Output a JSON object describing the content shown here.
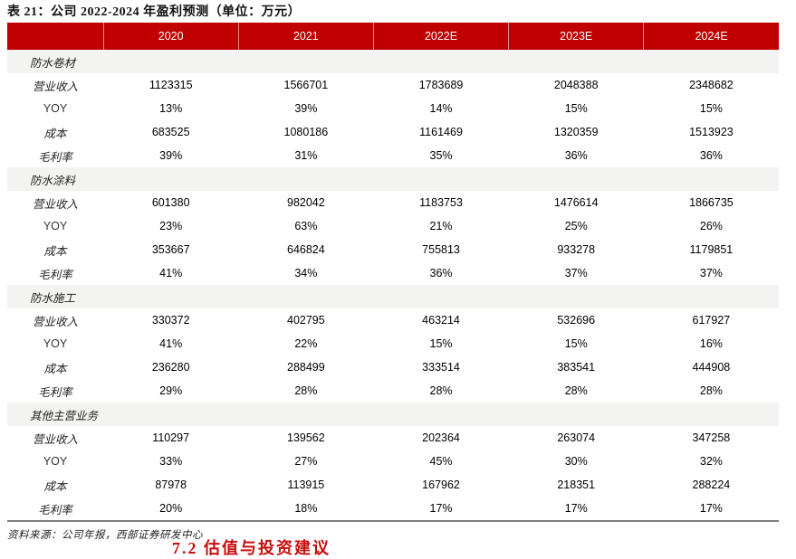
{
  "title": "表 21：公司 2022-2024 年盈利预测（单位：万元）",
  "footer": {
    "source": "资料来源：公司年报，西部证券研发中心"
  },
  "clipped_heading": "7.2 估值与投资建议",
  "colors": {
    "header_red": "#c00000",
    "section_row_bg": "#f3f3f2",
    "bottom_rule_gray": "#7f7f7f",
    "heading_red": "#c80d0d"
  },
  "chart_data": {
    "type": "table",
    "title": "表 21：公司 2022-2024 年盈利预测（单位：万元）",
    "columns": [
      "2020",
      "2021",
      "2022E",
      "2023E",
      "2024E"
    ],
    "sections": [
      {
        "name": "防水卷材",
        "rows": [
          {
            "label": "营业收入",
            "values": [
              "1123315",
              "1566701",
              "1783689",
              "2048388",
              "2348682"
            ]
          },
          {
            "label": "YOY",
            "values": [
              "13%",
              "39%",
              "14%",
              "15%",
              "15%"
            ]
          },
          {
            "label": "成本",
            "values": [
              "683525",
              "1080186",
              "1161469",
              "1320359",
              "1513923"
            ]
          },
          {
            "label": "毛利率",
            "values": [
              "39%",
              "31%",
              "35%",
              "36%",
              "36%"
            ]
          }
        ]
      },
      {
        "name": "防水涂料",
        "rows": [
          {
            "label": "营业收入",
            "values": [
              "601380",
              "982042",
              "1183753",
              "1476614",
              "1866735"
            ]
          },
          {
            "label": "YOY",
            "values": [
              "23%",
              "63%",
              "21%",
              "25%",
              "26%"
            ]
          },
          {
            "label": "成本",
            "values": [
              "353667",
              "646824",
              "755813",
              "933278",
              "1179851"
            ]
          },
          {
            "label": "毛利率",
            "values": [
              "41%",
              "34%",
              "36%",
              "37%",
              "37%"
            ]
          }
        ]
      },
      {
        "name": "防水施工",
        "rows": [
          {
            "label": "营业收入",
            "values": [
              "330372",
              "402795",
              "463214",
              "532696",
              "617927"
            ]
          },
          {
            "label": "YOY",
            "values": [
              "41%",
              "22%",
              "15%",
              "15%",
              "16%"
            ]
          },
          {
            "label": "成本",
            "values": [
              "236280",
              "288499",
              "333514",
              "383541",
              "444908"
            ]
          },
          {
            "label": "毛利率",
            "values": [
              "29%",
              "28%",
              "28%",
              "28%",
              "28%"
            ]
          }
        ]
      },
      {
        "name": "其他主营业务",
        "rows": [
          {
            "label": "营业收入",
            "values": [
              "110297",
              "139562",
              "202364",
              "263074",
              "347258"
            ]
          },
          {
            "label": "YOY",
            "values": [
              "33%",
              "27%",
              "45%",
              "30%",
              "32%"
            ]
          },
          {
            "label": "成本",
            "values": [
              "87978",
              "113915",
              "167962",
              "218351",
              "288224"
            ]
          },
          {
            "label": "毛利率",
            "values": [
              "20%",
              "18%",
              "17%",
              "17%",
              "17%"
            ]
          }
        ]
      }
    ]
  }
}
